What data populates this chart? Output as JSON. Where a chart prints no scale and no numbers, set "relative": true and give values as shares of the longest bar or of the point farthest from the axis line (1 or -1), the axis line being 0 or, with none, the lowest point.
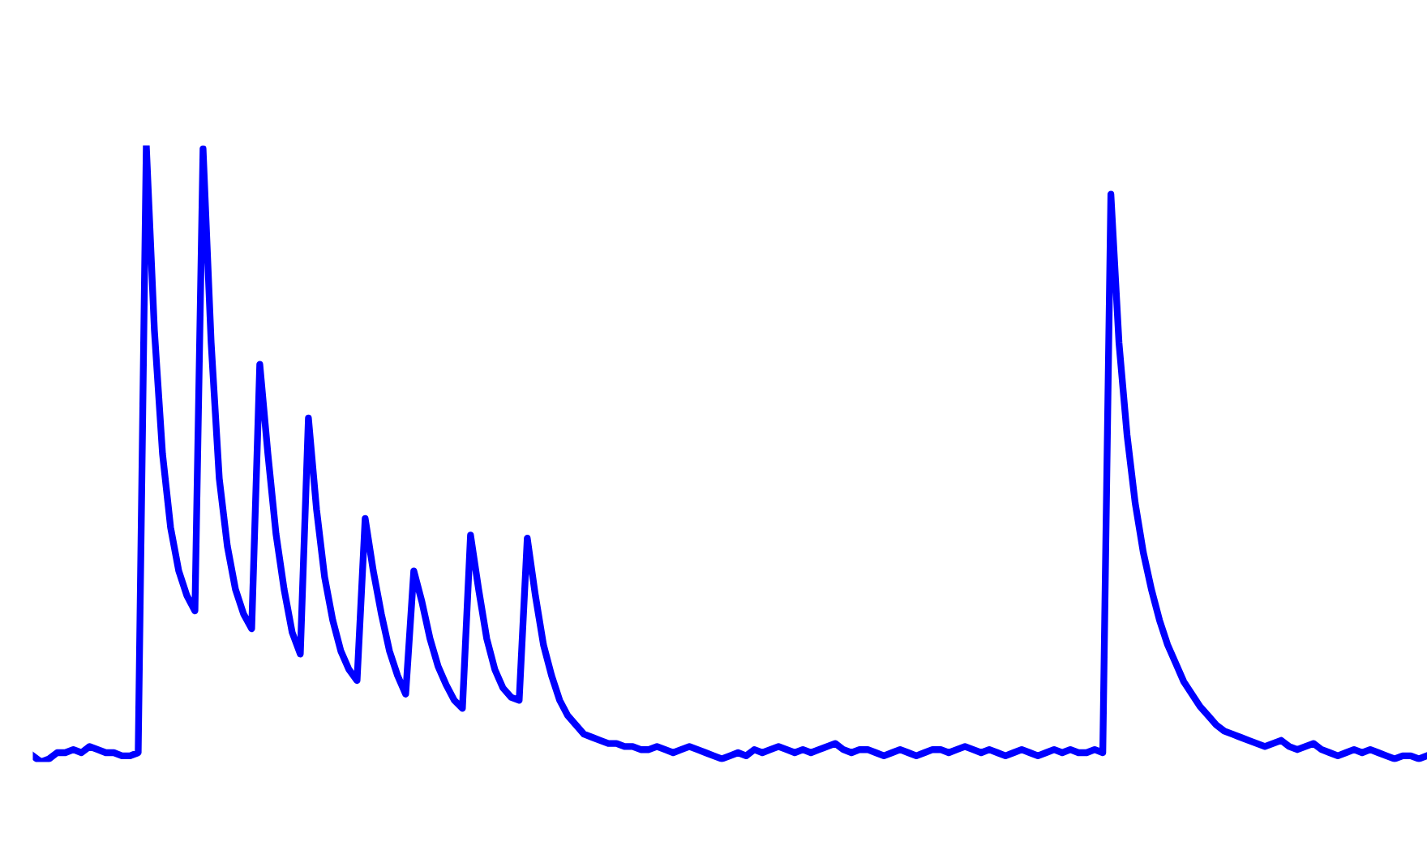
{
  "chart_data": {
    "type": "line",
    "relative": true,
    "categories": [
      null,
      null,
      null,
      null,
      null,
      null,
      null,
      null,
      null,
      null,
      null,
      null,
      null,
      null,
      null,
      null,
      null,
      null,
      null,
      null,
      null,
      null,
      null,
      null,
      null,
      null,
      null,
      null,
      null,
      null,
      null,
      null,
      null,
      null,
      null,
      null,
      null,
      null,
      null,
      null,
      null,
      null,
      null,
      null,
      null,
      null,
      null,
      null,
      null,
      null,
      null,
      null,
      null,
      null,
      null,
      null,
      null,
      null,
      null,
      null,
      null,
      null,
      null,
      null,
      null,
      null,
      null,
      null,
      null,
      null,
      null,
      null,
      null,
      null,
      null,
      null,
      null,
      null,
      null,
      null,
      null,
      null,
      null,
      null,
      null,
      null,
      null,
      null,
      null,
      null,
      null,
      null,
      null,
      null,
      null,
      null,
      null,
      null,
      null,
      null,
      null,
      null,
      null,
      null,
      null,
      null,
      null,
      null,
      null,
      null,
      null,
      null,
      null,
      null,
      null,
      null,
      null,
      null,
      null,
      null,
      null,
      null,
      null,
      null,
      null,
      null,
      null,
      null,
      null,
      null,
      null,
      null,
      null,
      null,
      null,
      null,
      null,
      null,
      null,
      null,
      null,
      null,
      null,
      null,
      null,
      null,
      null,
      null,
      null,
      null,
      null,
      null,
      null,
      null,
      null,
      null,
      null,
      null,
      null,
      null,
      null,
      null,
      null,
      null,
      null,
      null,
      null,
      null,
      null,
      null,
      null,
      null,
      null
    ],
    "series": [
      {
        "color": "#0000ff",
        "values": [
          0.01,
          0,
          0.005,
          0.015,
          0.015,
          0.02,
          0.015,
          0.025,
          0.02,
          0.015,
          0.015,
          0.01,
          0.01,
          0.015,
          1,
          0.7,
          0.5,
          0.38,
          0.31,
          0.27,
          0.245,
          0.995,
          0.68,
          0.46,
          0.35,
          0.28,
          0.24,
          0.216,
          0.645,
          0.5,
          0.37,
          0.28,
          0.21,
          0.175,
          0.558,
          0.41,
          0.3,
          0.23,
          0.18,
          0.15,
          0.132,
          0.395,
          0.31,
          0.24,
          0.18,
          0.14,
          0.11,
          0.31,
          0.26,
          0.2,
          0.155,
          0.125,
          0.1,
          0.087,
          0.368,
          0.28,
          0.2,
          0.15,
          0.12,
          0.105,
          0.1,
          0.363,
          0.27,
          0.19,
          0.14,
          0.1,
          0.075,
          0.06,
          0.045,
          0.04,
          0.035,
          0.03,
          0.03,
          0.025,
          0.025,
          0.02,
          0.02,
          0.025,
          0.02,
          0.015,
          0.02,
          0.025,
          0.02,
          0.015,
          0.01,
          0.005,
          0.01,
          0.015,
          0.01,
          0.02,
          0.015,
          0.02,
          0.025,
          0.02,
          0.015,
          0.02,
          0.015,
          0.02,
          0.025,
          0.03,
          0.02,
          0.015,
          0.02,
          0.02,
          0.015,
          0.01,
          0.015,
          0.02,
          0.015,
          0.01,
          0.015,
          0.02,
          0.02,
          0.015,
          0.02,
          0.025,
          0.02,
          0.015,
          0.02,
          0.015,
          0.01,
          0.015,
          0.02,
          0.015,
          0.01,
          0.015,
          0.02,
          0.015,
          0.02,
          0.015,
          0.015,
          0.02,
          0.015,
          0.921,
          0.68,
          0.53,
          0.42,
          0.34,
          0.28,
          0.23,
          0.19,
          0.16,
          0.13,
          0.11,
          0.09,
          0.075,
          0.06,
          0.05,
          0.045,
          0.04,
          0.035,
          0.03,
          0.025,
          0.03,
          0.035,
          0.025,
          0.02,
          0.025,
          0.03,
          0.02,
          0.015,
          0.01,
          0.015,
          0.02,
          0.015,
          0.02,
          0.015,
          0.01,
          0.005,
          0.01,
          0.01,
          0.005,
          0.01
        ]
      }
    ]
  }
}
